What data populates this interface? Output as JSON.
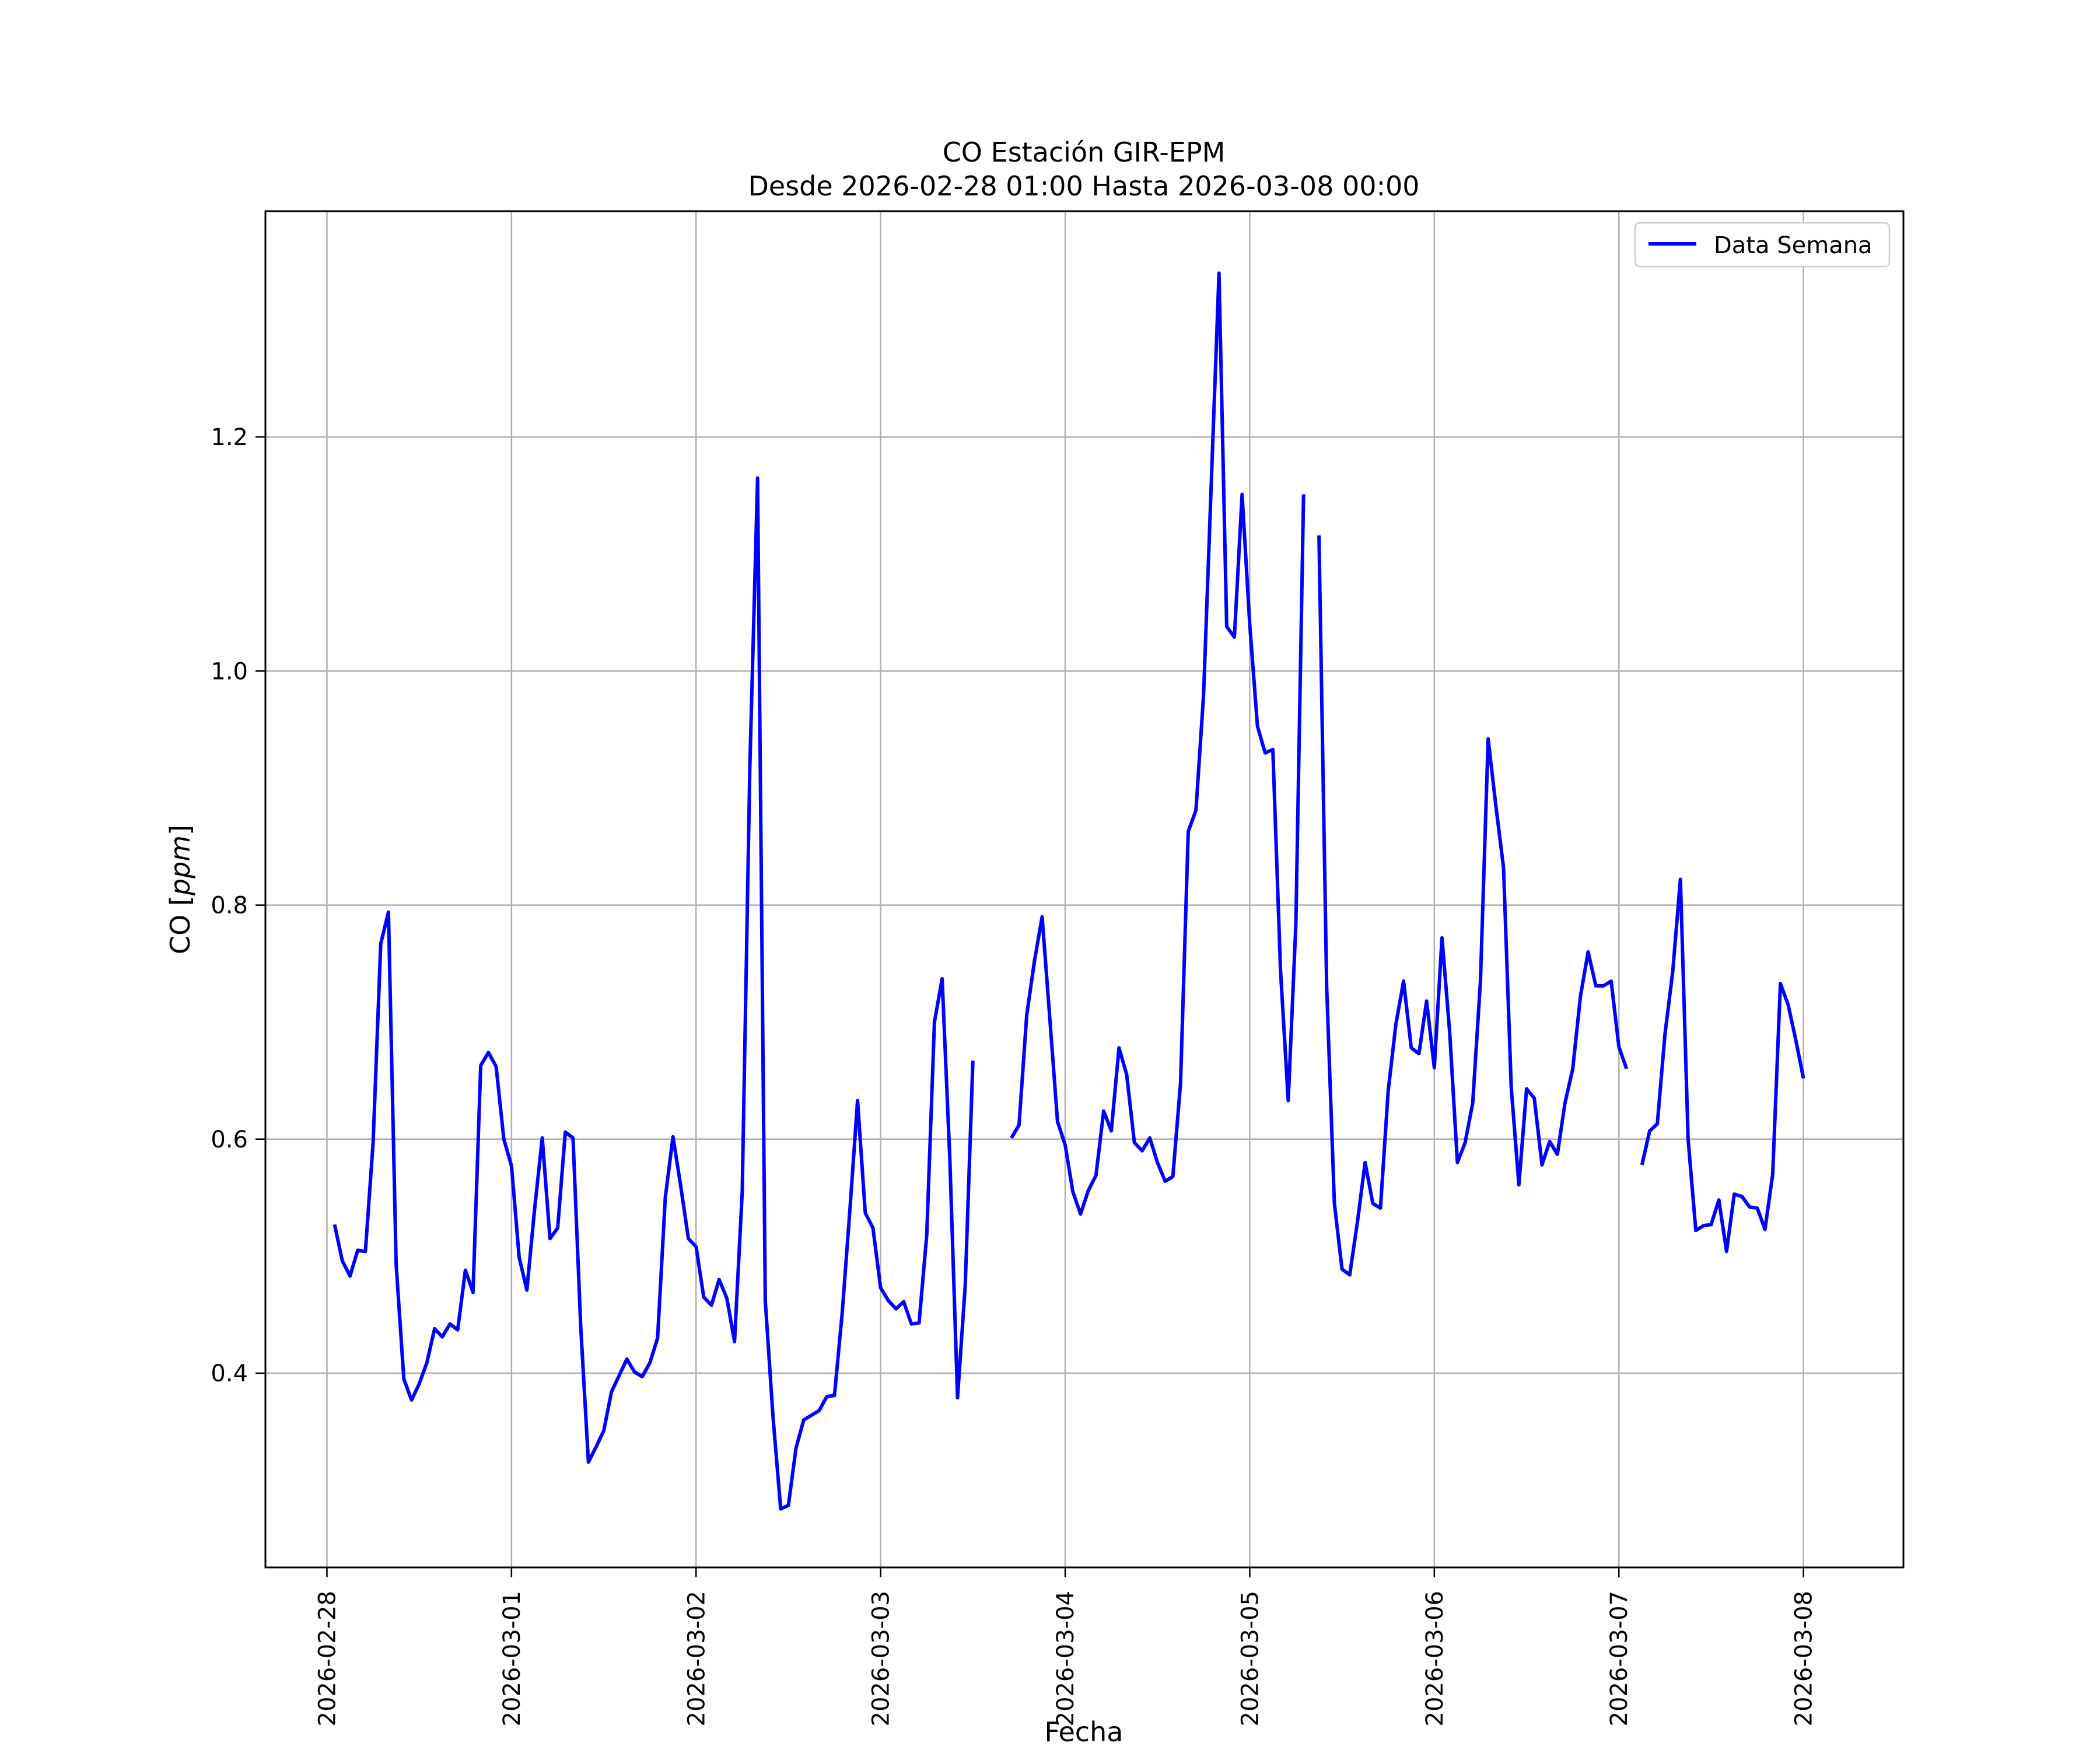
{
  "colors": {
    "series": "#0000ff",
    "grid": "#b0b0b0",
    "axes": "#000000",
    "background": "#ffffff"
  },
  "chart_data": {
    "type": "line",
    "title": "CO Estación GIR-EPM",
    "subtitle": "Desde 2026-02-28 01:00 Hasta 2026-03-08 00:00",
    "xlabel": "Fecha",
    "ylabel": "CO [ppm]",
    "ylabel_parts": {
      "prefix": "CO [",
      "unit": "ppm",
      "suffix": "]"
    },
    "xlim": [
      "2026-02-27 16:00",
      "2026-03-08 13:00"
    ],
    "ylim": [
      0.234,
      1.393
    ],
    "x_ticks": [
      "2026-02-28",
      "2026-03-01",
      "2026-03-02",
      "2026-03-03",
      "2026-03-04",
      "2026-03-05",
      "2026-03-06",
      "2026-03-07",
      "2026-03-08"
    ],
    "y_ticks": [
      0.4,
      0.6,
      0.8,
      1.0,
      1.2
    ],
    "y_tick_labels": [
      "0.4",
      "0.6",
      "0.8",
      "1.0",
      "1.2"
    ],
    "grid": true,
    "legend": {
      "position": "top-right",
      "entries": [
        "Data Semana"
      ]
    },
    "series": [
      {
        "name": "Data Semana",
        "color": "#0000ff",
        "points": [
          [
            "2026-02-28 01:00",
            0.527
          ],
          [
            "2026-02-28 02:00",
            0.496
          ],
          [
            "2026-02-28 03:00",
            0.483
          ],
          [
            "2026-02-28 04:00",
            0.505
          ],
          [
            "2026-02-28 05:00",
            0.504
          ],
          [
            "2026-02-28 06:00",
            0.597
          ],
          [
            "2026-02-28 07:00",
            0.767
          ],
          [
            "2026-02-28 08:00",
            0.794
          ],
          [
            "2026-02-28 09:00",
            0.493
          ],
          [
            "2026-02-28 10:00",
            0.395
          ],
          [
            "2026-02-28 11:00",
            0.377
          ],
          [
            "2026-02-28 12:00",
            0.391
          ],
          [
            "2026-02-28 13:00",
            0.409
          ],
          [
            "2026-02-28 14:00",
            0.438
          ],
          [
            "2026-02-28 15:00",
            0.431
          ],
          [
            "2026-02-28 16:00",
            0.442
          ],
          [
            "2026-02-28 17:00",
            0.437
          ],
          [
            "2026-02-28 18:00",
            0.488
          ],
          [
            "2026-02-28 19:00",
            0.469
          ],
          [
            "2026-02-28 20:00",
            0.663
          ],
          [
            "2026-02-28 21:00",
            0.674
          ],
          [
            "2026-02-28 22:00",
            0.662
          ],
          [
            "2026-02-28 23:00",
            0.6
          ],
          [
            "2026-03-01 00:00",
            0.577
          ],
          [
            "2026-03-01 01:00",
            0.499
          ],
          [
            "2026-03-01 02:00",
            0.471
          ],
          [
            "2026-03-01 03:00",
            0.54
          ],
          [
            "2026-03-01 04:00",
            0.601
          ],
          [
            "2026-03-01 05:00",
            0.515
          ],
          [
            "2026-03-01 06:00",
            0.524
          ],
          [
            "2026-03-01 07:00",
            0.606
          ],
          [
            "2026-03-01 08:00",
            0.601
          ],
          [
            "2026-03-01 09:00",
            0.44
          ],
          [
            "2026-03-01 10:00",
            0.324
          ],
          [
            "2026-03-01 11:00",
            0.337
          ],
          [
            "2026-03-01 12:00",
            0.351
          ],
          [
            "2026-03-01 13:00",
            0.384
          ],
          [
            "2026-03-01 14:00",
            0.398
          ],
          [
            "2026-03-01 15:00",
            0.412
          ],
          [
            "2026-03-01 16:00",
            0.401
          ],
          [
            "2026-03-01 17:00",
            0.397
          ],
          [
            "2026-03-01 18:00",
            0.409
          ],
          [
            "2026-03-01 19:00",
            0.43
          ],
          [
            "2026-03-01 20:00",
            0.55
          ],
          [
            "2026-03-01 21:00",
            0.602
          ],
          [
            "2026-03-01 22:00",
            0.56
          ],
          [
            "2026-03-01 23:00",
            0.515
          ],
          [
            "2026-03-02 00:00",
            0.508
          ],
          [
            "2026-03-02 01:00",
            0.465
          ],
          [
            "2026-03-02 02:00",
            0.458
          ],
          [
            "2026-03-02 03:00",
            0.48
          ],
          [
            "2026-03-02 04:00",
            0.464
          ],
          [
            "2026-03-02 05:00",
            0.427
          ],
          [
            "2026-03-02 06:00",
            0.555
          ],
          [
            "2026-03-02 07:00",
            0.919
          ],
          [
            "2026-03-02 08:00",
            1.165
          ],
          [
            "2026-03-02 09:00",
            0.462
          ],
          [
            "2026-03-02 10:00",
            0.363
          ],
          [
            "2026-03-02 11:00",
            0.284
          ],
          [
            "2026-03-02 12:00",
            0.287
          ],
          [
            "2026-03-02 13:00",
            0.336
          ],
          [
            "2026-03-02 14:00",
            0.36
          ],
          [
            "2026-03-02 15:00",
            0.364
          ],
          [
            "2026-03-02 16:00",
            0.368
          ],
          [
            "2026-03-02 17:00",
            0.38
          ],
          [
            "2026-03-02 18:00",
            0.381
          ],
          [
            "2026-03-02 19:00",
            0.451
          ],
          [
            "2026-03-02 20:00",
            0.539
          ],
          [
            "2026-03-02 21:00",
            0.633
          ],
          [
            "2026-03-02 22:00",
            0.537
          ],
          [
            "2026-03-02 23:00",
            0.524
          ],
          [
            "2026-03-03 00:00",
            0.473
          ],
          [
            "2026-03-03 01:00",
            0.462
          ],
          [
            "2026-03-03 02:00",
            0.455
          ],
          [
            "2026-03-03 03:00",
            0.461
          ],
          [
            "2026-03-03 04:00",
            0.442
          ],
          [
            "2026-03-03 05:00",
            0.443
          ],
          [
            "2026-03-03 06:00",
            0.518
          ],
          [
            "2026-03-03 07:00",
            0.7
          ],
          [
            "2026-03-03 08:00",
            0.737
          ],
          [
            "2026-03-03 09:00",
            0.583
          ],
          [
            "2026-03-03 10:00",
            0.379
          ],
          [
            "2026-03-03 11:00",
            0.475
          ],
          [
            "2026-03-03 12:00",
            0.667
          ],
          [
            "2026-03-03 13:00",
            null
          ],
          [
            "2026-03-03 14:00",
            null
          ],
          [
            "2026-03-03 15:00",
            null
          ],
          [
            "2026-03-03 16:00",
            null
          ],
          [
            "2026-03-03 17:00",
            0.601
          ],
          [
            "2026-03-03 18:00",
            0.612
          ],
          [
            "2026-03-03 19:00",
            0.706
          ],
          [
            "2026-03-03 20:00",
            0.752
          ],
          [
            "2026-03-03 21:00",
            0.79
          ],
          [
            "2026-03-03 22:00",
            0.703
          ],
          [
            "2026-03-03 23:00",
            0.615
          ],
          [
            "2026-03-04 00:00",
            0.595
          ],
          [
            "2026-03-04 01:00",
            0.555
          ],
          [
            "2026-03-04 02:00",
            0.536
          ],
          [
            "2026-03-04 03:00",
            0.556
          ],
          [
            "2026-03-04 04:00",
            0.569
          ],
          [
            "2026-03-04 05:00",
            0.624
          ],
          [
            "2026-03-04 06:00",
            0.607
          ],
          [
            "2026-03-04 07:00",
            0.678
          ],
          [
            "2026-03-04 08:00",
            0.655
          ],
          [
            "2026-03-04 09:00",
            0.597
          ],
          [
            "2026-03-04 10:00",
            0.59
          ],
          [
            "2026-03-04 11:00",
            0.601
          ],
          [
            "2026-03-04 12:00",
            0.58
          ],
          [
            "2026-03-04 13:00",
            0.564
          ],
          [
            "2026-03-04 14:00",
            0.568
          ],
          [
            "2026-03-04 15:00",
            0.648
          ],
          [
            "2026-03-04 16:00",
            0.863
          ],
          [
            "2026-03-04 17:00",
            0.881
          ],
          [
            "2026-03-04 18:00",
            0.98
          ],
          [
            "2026-03-04 19:00",
            1.161
          ],
          [
            "2026-03-04 20:00",
            1.34
          ],
          [
            "2026-03-04 21:00",
            1.038
          ],
          [
            "2026-03-04 22:00",
            1.029
          ],
          [
            "2026-03-04 23:00",
            1.151
          ],
          [
            "2026-03-05 00:00",
            1.04
          ],
          [
            "2026-03-05 01:00",
            0.953
          ],
          [
            "2026-03-05 02:00",
            0.93
          ],
          [
            "2026-03-05 03:00",
            0.933
          ],
          [
            "2026-03-05 04:00",
            0.744
          ],
          [
            "2026-03-05 05:00",
            0.633
          ],
          [
            "2026-03-05 06:00",
            0.784
          ],
          [
            "2026-03-05 07:00",
            1.151
          ],
          [
            "2026-03-05 08:00",
            null
          ],
          [
            "2026-03-05 09:00",
            1.116
          ],
          [
            "2026-03-05 10:00",
            0.73
          ],
          [
            "2026-03-05 11:00",
            0.545
          ],
          [
            "2026-03-05 12:00",
            0.489
          ],
          [
            "2026-03-05 13:00",
            0.484
          ],
          [
            "2026-03-05 14:00",
            0.529
          ],
          [
            "2026-03-05 15:00",
            0.58
          ],
          [
            "2026-03-05 16:00",
            0.545
          ],
          [
            "2026-03-05 17:00",
            0.541
          ],
          [
            "2026-03-05 18:00",
            0.641
          ],
          [
            "2026-03-05 19:00",
            0.698
          ],
          [
            "2026-03-05 20:00",
            0.735
          ],
          [
            "2026-03-05 21:00",
            0.678
          ],
          [
            "2026-03-05 22:00",
            0.673
          ],
          [
            "2026-03-05 23:00",
            0.718
          ],
          [
            "2026-03-06 00:00",
            0.661
          ],
          [
            "2026-03-06 01:00",
            0.772
          ],
          [
            "2026-03-06 02:00",
            0.691
          ],
          [
            "2026-03-06 03:00",
            0.58
          ],
          [
            "2026-03-06 04:00",
            0.597
          ],
          [
            "2026-03-06 05:00",
            0.631
          ],
          [
            "2026-03-06 06:00",
            0.735
          ],
          [
            "2026-03-06 07:00",
            0.942
          ],
          [
            "2026-03-06 08:00",
            0.885
          ],
          [
            "2026-03-06 09:00",
            0.832
          ],
          [
            "2026-03-06 10:00",
            0.644
          ],
          [
            "2026-03-06 11:00",
            0.561
          ],
          [
            "2026-03-06 12:00",
            0.643
          ],
          [
            "2026-03-06 13:00",
            0.635
          ],
          [
            "2026-03-06 14:00",
            0.578
          ],
          [
            "2026-03-06 15:00",
            0.598
          ],
          [
            "2026-03-06 16:00",
            0.587
          ],
          [
            "2026-03-06 17:00",
            0.631
          ],
          [
            "2026-03-06 18:00",
            0.66
          ],
          [
            "2026-03-06 19:00",
            0.722
          ],
          [
            "2026-03-06 20:00",
            0.76
          ],
          [
            "2026-03-06 21:00",
            0.731
          ],
          [
            "2026-03-06 22:00",
            0.731
          ],
          [
            "2026-03-06 23:00",
            0.735
          ],
          [
            "2026-03-07 00:00",
            0.679
          ],
          [
            "2026-03-07 01:00",
            0.66
          ],
          [
            "2026-03-07 02:00",
            null
          ],
          [
            "2026-03-07 03:00",
            0.578
          ],
          [
            "2026-03-07 04:00",
            0.607
          ],
          [
            "2026-03-07 05:00",
            0.613
          ],
          [
            "2026-03-07 06:00",
            0.69
          ],
          [
            "2026-03-07 07:00",
            0.743
          ],
          [
            "2026-03-07 08:00",
            0.822
          ],
          [
            "2026-03-07 09:00",
            0.6
          ],
          [
            "2026-03-07 10:00",
            0.522
          ],
          [
            "2026-03-07 11:00",
            0.526
          ],
          [
            "2026-03-07 12:00",
            0.527
          ],
          [
            "2026-03-07 13:00",
            0.548
          ],
          [
            "2026-03-07 14:00",
            0.504
          ],
          [
            "2026-03-07 15:00",
            0.553
          ],
          [
            "2026-03-07 16:00",
            0.551
          ],
          [
            "2026-03-07 17:00",
            0.542
          ],
          [
            "2026-03-07 18:00",
            0.541
          ],
          [
            "2026-03-07 19:00",
            0.523
          ],
          [
            "2026-03-07 20:00",
            0.57
          ],
          [
            "2026-03-07 21:00",
            0.733
          ],
          [
            "2026-03-07 22:00",
            0.715
          ],
          [
            "2026-03-07 23:00",
            0.685
          ],
          [
            "2026-03-08 00:00",
            0.652
          ]
        ]
      }
    ]
  }
}
